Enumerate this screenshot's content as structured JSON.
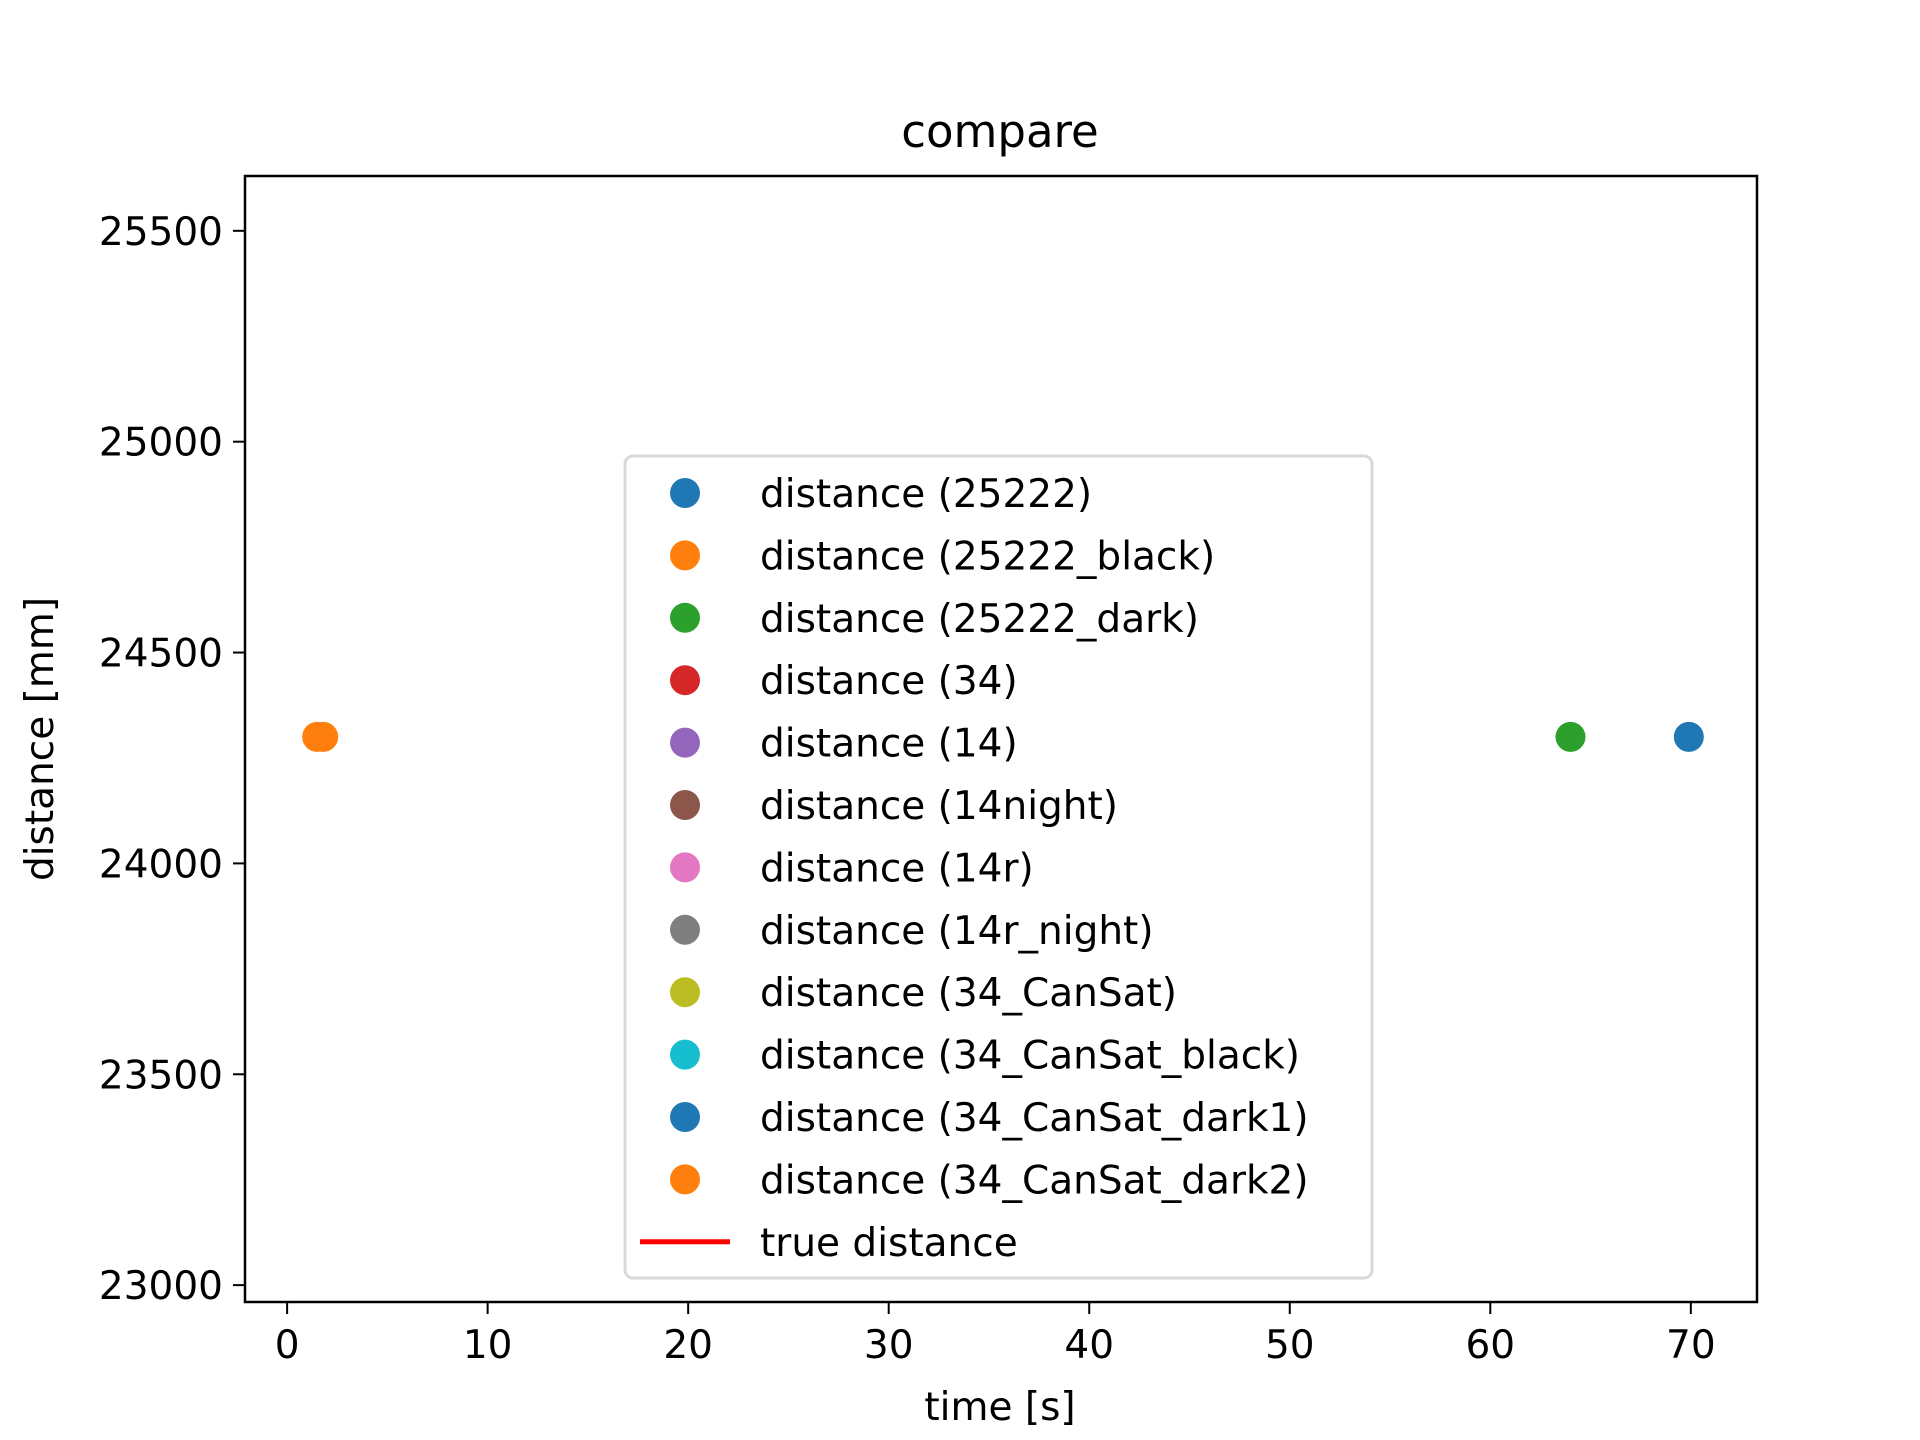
{
  "chart_data": {
    "type": "scatter",
    "title": "compare",
    "xlabel": "time [s]",
    "ylabel": "distance [mm]",
    "xlim": [
      -2.1,
      73.3
    ],
    "ylim": [
      22960,
      25630
    ],
    "xticks": [
      0,
      10,
      20,
      30,
      40,
      50,
      60,
      70
    ],
    "yticks": [
      23000,
      23500,
      24000,
      24500,
      25000,
      25500
    ],
    "grid": false,
    "legend_position": "center",
    "series": [
      {
        "name": "distance (25222)",
        "color": "#1f77b4",
        "points": [
          [
            69.9,
            24300
          ]
        ]
      },
      {
        "name": "distance (25222_black)",
        "color": "#ff7f0e",
        "points": [
          [
            1.5,
            24300
          ]
        ]
      },
      {
        "name": "distance (25222_dark)",
        "color": "#2ca02c",
        "points": [
          [
            64.0,
            24300
          ]
        ]
      },
      {
        "name": "distance (34)",
        "color": "#d62728",
        "points": []
      },
      {
        "name": "distance (14)",
        "color": "#9467bd",
        "points": []
      },
      {
        "name": "distance (14night)",
        "color": "#8c564b",
        "points": []
      },
      {
        "name": "distance (14r)",
        "color": "#e377c2",
        "points": []
      },
      {
        "name": "distance (14r_night)",
        "color": "#7f7f7f",
        "points": []
      },
      {
        "name": "distance (34_CanSat)",
        "color": "#bcbd22",
        "points": []
      },
      {
        "name": "distance (34_CanSat_black)",
        "color": "#17becf",
        "points": []
      },
      {
        "name": "distance (34_CanSat_dark1)",
        "color": "#1f77b4",
        "points": []
      },
      {
        "name": "distance (34_CanSat_dark2)",
        "color": "#ff7f0e",
        "points": [
          [
            1.8,
            24300
          ]
        ]
      }
    ],
    "lines": [
      {
        "name": "true distance",
        "color": "#ff0000",
        "points": []
      }
    ]
  }
}
